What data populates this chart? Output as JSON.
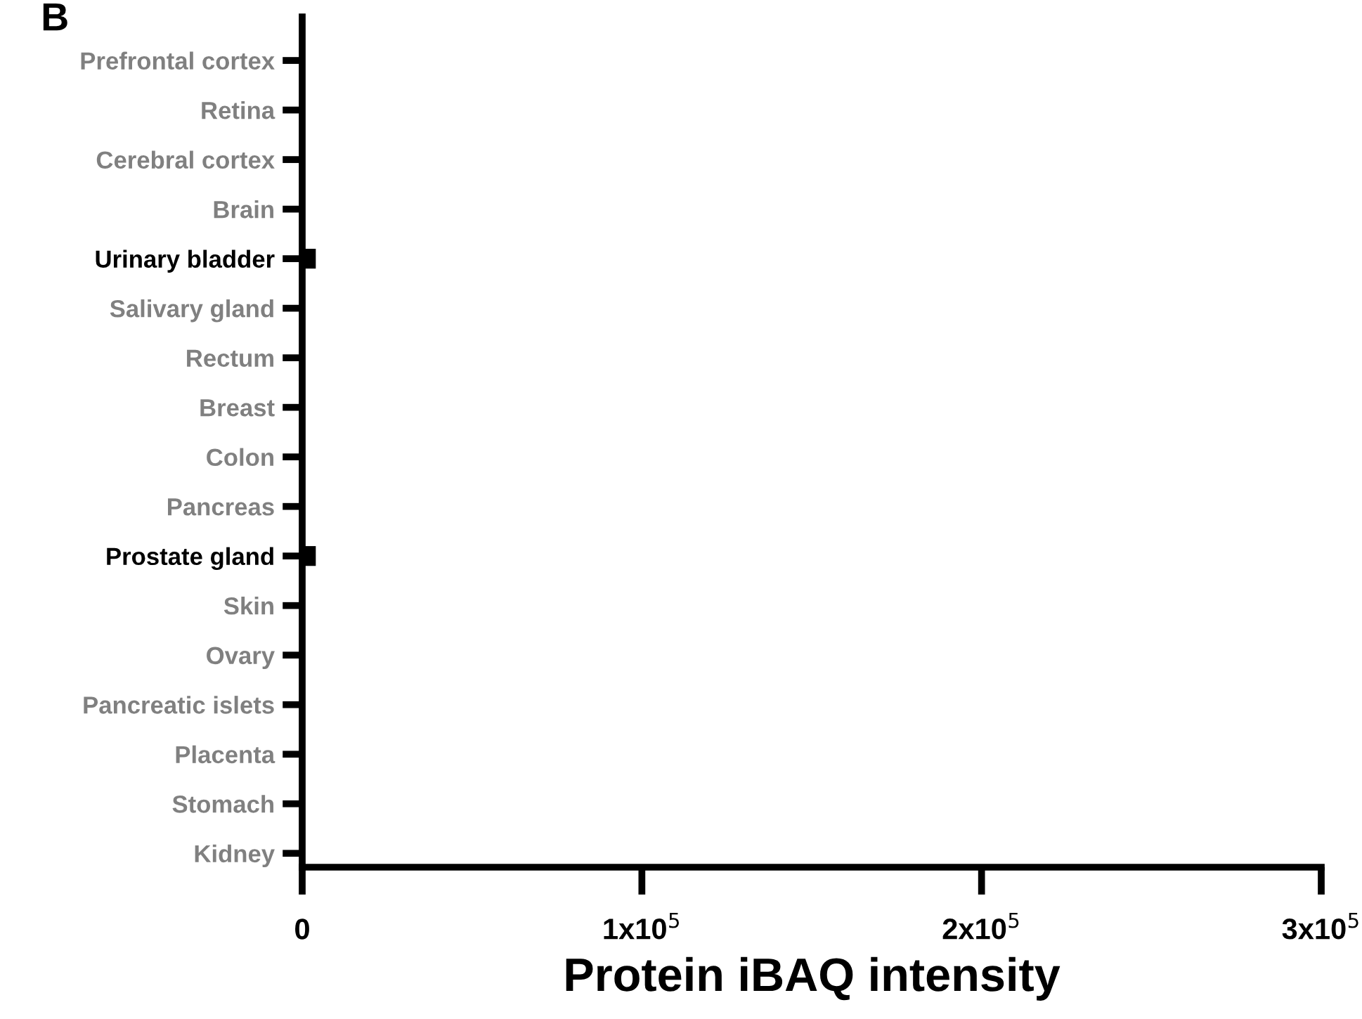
{
  "chart_data": {
    "type": "bar",
    "orientation": "horizontal",
    "xlabel": "Protein iBAQ intensity",
    "categories": [
      "Prefrontal cortex",
      "Retina",
      "Cerebral cortex",
      "Brain",
      "Urinary bladder",
      "Salivary gland",
      "Rectum",
      "Breast",
      "Colon",
      "Pancreas",
      "Prostate gland",
      "Skin",
      "Ovary",
      "Pancreatic islets",
      "Placenta",
      "Stomach",
      "Kidney"
    ],
    "values": [
      0,
      0,
      0,
      0,
      4000,
      0,
      0,
      0,
      0,
      0,
      4000,
      0,
      0,
      0,
      0,
      0,
      0
    ],
    "color": "#000000",
    "xlim": [
      0,
      300000
    ],
    "xticks": [
      0,
      {
        "value": 100000,
        "label": "1x10$^{5}$"
      },
      {
        "value": 200000,
        "label": "2x10$^{5}$"
      },
      {
        "value": 300000,
        "label": "3x10$^{5}$"
      }
    ],
    "annotations": [
      "B"
    ],
    "grid": false
  }
}
